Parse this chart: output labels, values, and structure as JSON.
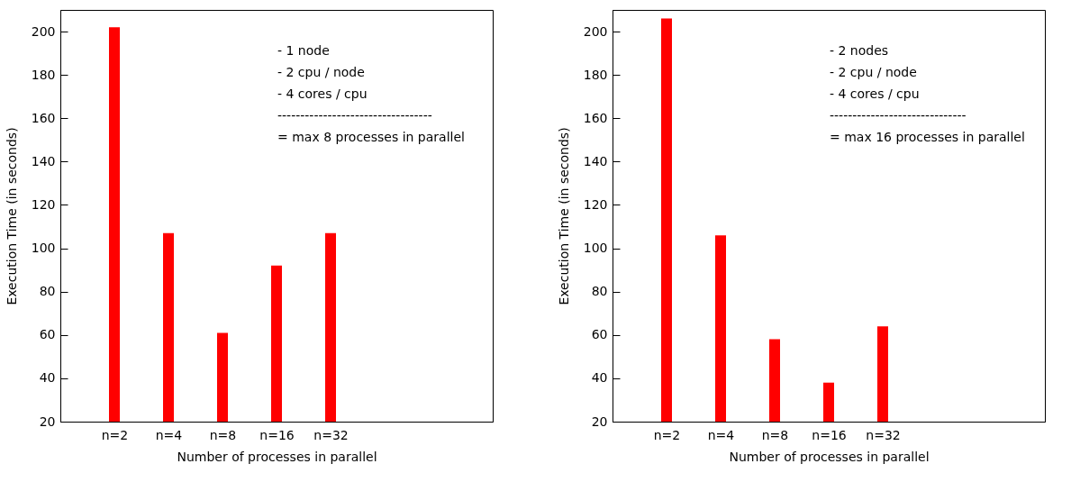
{
  "chart_data": [
    {
      "type": "bar",
      "categories": [
        "n=2",
        "n=4",
        "n=8",
        "n=16",
        "n=32",
        null,
        null
      ],
      "values": [
        202,
        107,
        61,
        92,
        107,
        null,
        null
      ],
      "color": "#ff0000",
      "xlabel": "Number of processes in parallel",
      "ylabel": "Execution Time (in seconds)",
      "ylim": [
        20,
        210
      ],
      "yticks": [
        20,
        40,
        60,
        80,
        100,
        120,
        140,
        160,
        180,
        200
      ],
      "grid": false,
      "annotations": [
        "- 1 node",
        "- 2 cpu / node",
        "- 4 cores / cpu",
        "----------------------------------",
        "= max 8 processes in parallel"
      ]
    },
    {
      "type": "bar",
      "categories": [
        "n=2",
        "n=4",
        "n=8",
        "n=16",
        "n=32",
        null,
        null
      ],
      "values": [
        206,
        106,
        58,
        38,
        64,
        null,
        null
      ],
      "color": "#ff0000",
      "xlabel": "Number of processes in parallel",
      "ylabel": "Execution Time (in seconds)",
      "ylim": [
        20,
        210
      ],
      "yticks": [
        20,
        40,
        60,
        80,
        100,
        120,
        140,
        160,
        180,
        200
      ],
      "grid": false,
      "annotations": [
        "- 2 nodes",
        "- 2 cpu / node",
        "- 4 cores / cpu",
        "------------------------------",
        "= max 16 processes in parallel"
      ]
    }
  ]
}
